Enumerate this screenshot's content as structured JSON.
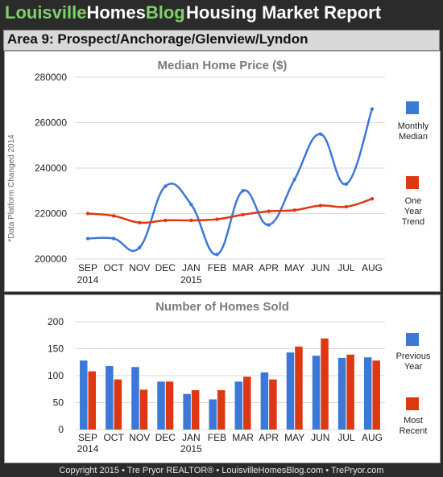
{
  "header": {
    "brand_part1": "Louisville",
    "brand_part2": "Homes",
    "brand_part3": "Blog",
    "title": "Housing Market Report"
  },
  "area": {
    "title": "Area 9: Prospect/Anchorage/Glenview/Lyndon"
  },
  "footer": {
    "text": "Copyright 2015 • Tre Pryor REALTOR® • LouisvilleHomesBlog.com • TrePryor.com"
  },
  "chart_data": [
    {
      "type": "line",
      "title": "Median Home Price ($)",
      "side_note": "*Data Platform Changed 2014",
      "categories": [
        "SEP",
        "OCT",
        "NOV",
        "DEC",
        "JAN",
        "FEB",
        "MAR",
        "APR",
        "MAY",
        "JUN",
        "JUL",
        "AUG"
      ],
      "year_labels": [
        {
          "index": 0,
          "label": "2014"
        },
        {
          "index": 4,
          "label": "2015"
        }
      ],
      "ylim": [
        200000,
        280000
      ],
      "yticks": [
        "200000",
        "220000",
        "240000",
        "260000",
        "280000"
      ],
      "grid": true,
      "legend_position": "right",
      "series": [
        {
          "name": "Monthly Median",
          "legend_lines": [
            "Monthly",
            "Median"
          ],
          "color": "#3c78d8",
          "values": [
            209000,
            209000,
            205000,
            232000,
            224000,
            202000,
            230000,
            215000,
            235000,
            255000,
            233000,
            266000
          ]
        },
        {
          "name": "One Year Trend",
          "legend_lines": [
            "One",
            "Year",
            "Trend"
          ],
          "color": "#dc3912",
          "values": [
            220000,
            219000,
            216000,
            217000,
            217000,
            217500,
            219500,
            221000,
            221500,
            223500,
            223000,
            226500
          ]
        }
      ]
    },
    {
      "type": "bar",
      "title": "Number of Homes Sold",
      "categories": [
        "SEP",
        "OCT",
        "NOV",
        "DEC",
        "JAN",
        "FEB",
        "MAR",
        "APR",
        "MAY",
        "JUN",
        "JUL",
        "AUG"
      ],
      "year_labels": [
        {
          "index": 0,
          "label": "2014"
        },
        {
          "index": 4,
          "label": "2015"
        }
      ],
      "ylim": [
        0,
        200
      ],
      "yticks": [
        "0",
        "50",
        "100",
        "150",
        "200"
      ],
      "grid": true,
      "legend_position": "right",
      "series": [
        {
          "name": "Previous Year",
          "legend_lines": [
            "Previous",
            "Year"
          ],
          "color": "#3c78d8",
          "values": [
            128,
            118,
            116,
            89,
            66,
            56,
            89,
            106,
            143,
            137,
            133,
            134
          ]
        },
        {
          "name": "Most Recent",
          "legend_lines": [
            "Most",
            "Recent"
          ],
          "color": "#dc3912",
          "values": [
            108,
            93,
            74,
            89,
            73,
            73,
            98,
            93,
            154,
            169,
            139,
            128
          ]
        }
      ]
    }
  ]
}
